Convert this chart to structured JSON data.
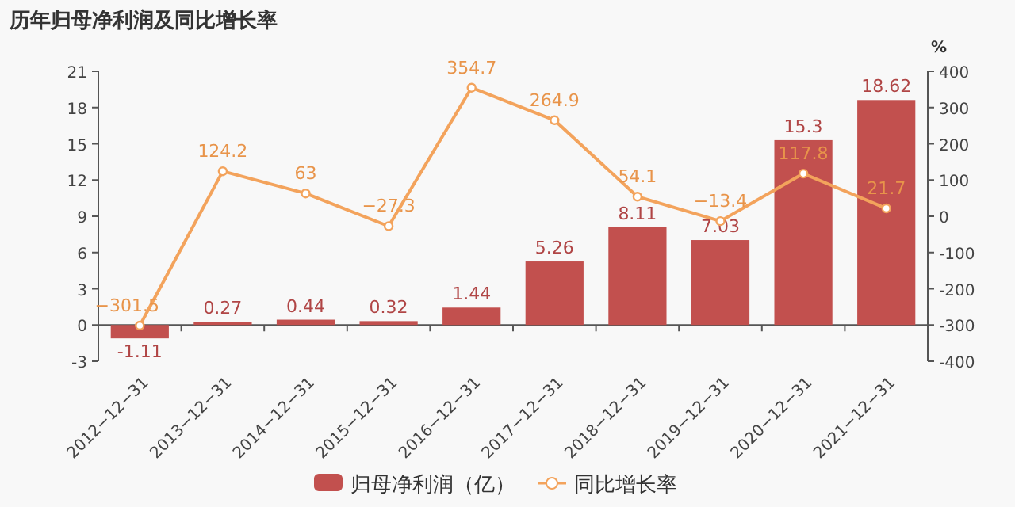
{
  "chart_data": {
    "type": "bar",
    "title": "历年归母净利润及同比增长率",
    "y2label": "%",
    "categories": [
      "2012−12−31",
      "2013−12−31",
      "2014−12−31",
      "2015−12−31",
      "2016−12−31",
      "2017−12−31",
      "2018−12−31",
      "2019−12−31",
      "2020−12−31",
      "2021−12−31"
    ],
    "series": [
      {
        "name": "归母净利润（亿）",
        "color": "#c2504e",
        "values": [
          -1.11,
          0.27,
          0.44,
          0.32,
          1.44,
          5.26,
          8.11,
          7.03,
          15.3,
          18.62
        ]
      },
      {
        "name": "同比增长率",
        "type": "line",
        "axis": "y2",
        "color": "#f3a35c",
        "marker": "circle",
        "values": [
          -301.5,
          124.2,
          63,
          -27.3,
          354.7,
          264.9,
          54.1,
          -13.4,
          117.8,
          21.7
        ]
      }
    ],
    "ylim": [
      -3,
      21
    ],
    "yticks": [
      -3,
      0,
      3,
      6,
      9,
      12,
      15,
      18,
      21
    ],
    "y2lim": [
      -400,
      400
    ],
    "y2ticks": [
      -400,
      -300,
      -200,
      -100,
      0,
      100,
      200,
      300,
      400
    ],
    "data_labels": true,
    "legend": "bottom"
  }
}
